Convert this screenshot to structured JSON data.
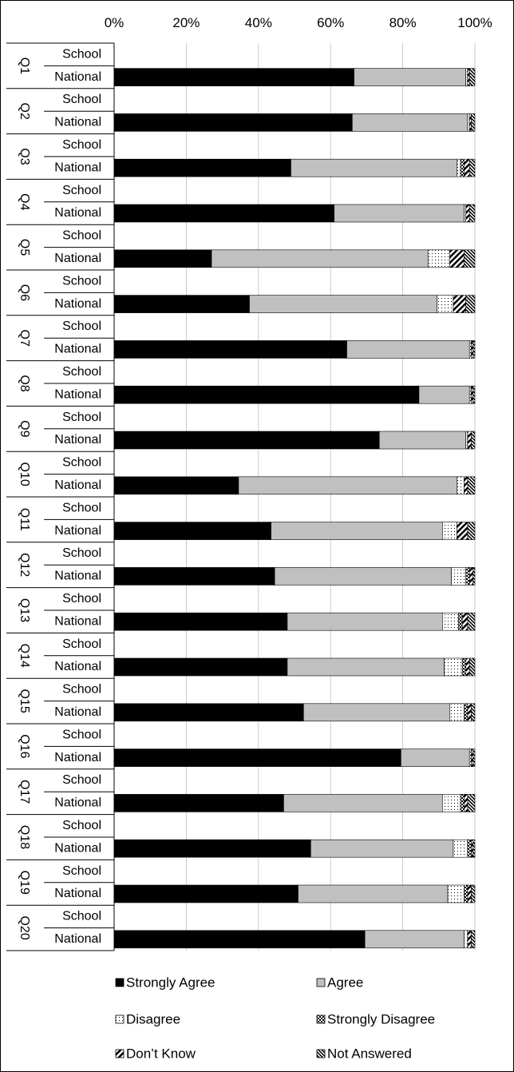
{
  "chart_data": {
    "type": "bar",
    "orientation": "horizontal",
    "stacked": "percent",
    "x_ticks": [
      "0%",
      "20%",
      "40%",
      "60%",
      "80%",
      "100%"
    ],
    "xlim": [
      0,
      100
    ],
    "grid": true,
    "legend_position": "bottom",
    "questions": [
      "Q1",
      "Q2",
      "Q3",
      "Q4",
      "Q5",
      "Q6",
      "Q7",
      "Q8",
      "Q9",
      "Q10",
      "Q11",
      "Q12",
      "Q13",
      "Q14",
      "Q15",
      "Q16",
      "Q17",
      "Q18",
      "Q19",
      "Q20"
    ],
    "row_labels": [
      "School",
      "National"
    ],
    "series": [
      {
        "name": "Strongly Agree",
        "color": "#000000",
        "pattern": "solid"
      },
      {
        "name": "Agree",
        "color": "#c0c0c0",
        "pattern": "solid"
      },
      {
        "name": "Disagree",
        "color": "#ffffff",
        "pattern": "dots"
      },
      {
        "name": "Strongly Disagree",
        "color": "#ffffff",
        "pattern": "checker"
      },
      {
        "name": "Don’t Know",
        "color": "#ffffff",
        "pattern": "diag-wide"
      },
      {
        "name": "Not Answered",
        "color": "#ffffff",
        "pattern": "diag-dense"
      }
    ],
    "national_values": [
      [
        66.5,
        31,
        0.5,
        0,
        0.5,
        1.5
      ],
      [
        66,
        32,
        0.5,
        0,
        0.5,
        1
      ],
      [
        49,
        46,
        1,
        1,
        1.5,
        1.5
      ],
      [
        61,
        36,
        0.5,
        0,
        1,
        1.5
      ],
      [
        27,
        60,
        6,
        0,
        4,
        3
      ],
      [
        37.5,
        52,
        4.5,
        0,
        3.5,
        2.5
      ],
      [
        64.5,
        34,
        0.5,
        0,
        0.5,
        0.5
      ],
      [
        84.5,
        14,
        0.5,
        0,
        0.5,
        0.5
      ],
      [
        73.5,
        24,
        0.5,
        0,
        1,
        1
      ],
      [
        34.5,
        60.5,
        2,
        0,
        1,
        2
      ],
      [
        43.5,
        47.5,
        4,
        0,
        3,
        2
      ],
      [
        44.5,
        49,
        4,
        1,
        1,
        0.5
      ],
      [
        48,
        43,
        4.5,
        1,
        1.5,
        2
      ],
      [
        48,
        43.5,
        5,
        1,
        1,
        1.5
      ],
      [
        52.5,
        40.5,
        4,
        1,
        1,
        1
      ],
      [
        79.5,
        19,
        0.5,
        0,
        0.5,
        0.5
      ],
      [
        47,
        44,
        5,
        1,
        1,
        2
      ],
      [
        54.5,
        39.5,
        4,
        1,
        0.5,
        0.5
      ],
      [
        51,
        41.5,
        4.5,
        1,
        1,
        1
      ],
      [
        69.5,
        27.5,
        1,
        0,
        1,
        1
      ]
    ],
    "school_values": [
      [
        0,
        0,
        0,
        0,
        0,
        0
      ],
      [
        0,
        0,
        0,
        0,
        0,
        0
      ],
      [
        0,
        0,
        0,
        0,
        0,
        0
      ],
      [
        0,
        0,
        0,
        0,
        0,
        0
      ],
      [
        0,
        0,
        0,
        0,
        0,
        0
      ],
      [
        0,
        0,
        0,
        0,
        0,
        0
      ],
      [
        0,
        0,
        0,
        0,
        0,
        0
      ],
      [
        0,
        0,
        0,
        0,
        0,
        0
      ],
      [
        0,
        0,
        0,
        0,
        0,
        0
      ],
      [
        0,
        0,
        0,
        0,
        0,
        0
      ],
      [
        0,
        0,
        0,
        0,
        0,
        0
      ],
      [
        0,
        0,
        0,
        0,
        0,
        0
      ],
      [
        0,
        0,
        0,
        0,
        0,
        0
      ],
      [
        0,
        0,
        0,
        0,
        0,
        0
      ],
      [
        0,
        0,
        0,
        0,
        0,
        0
      ],
      [
        0,
        0,
        0,
        0,
        0,
        0
      ],
      [
        0,
        0,
        0,
        0,
        0,
        0
      ],
      [
        0,
        0,
        0,
        0,
        0,
        0
      ],
      [
        0,
        0,
        0,
        0,
        0,
        0
      ],
      [
        0,
        0,
        0,
        0,
        0,
        0
      ]
    ]
  }
}
